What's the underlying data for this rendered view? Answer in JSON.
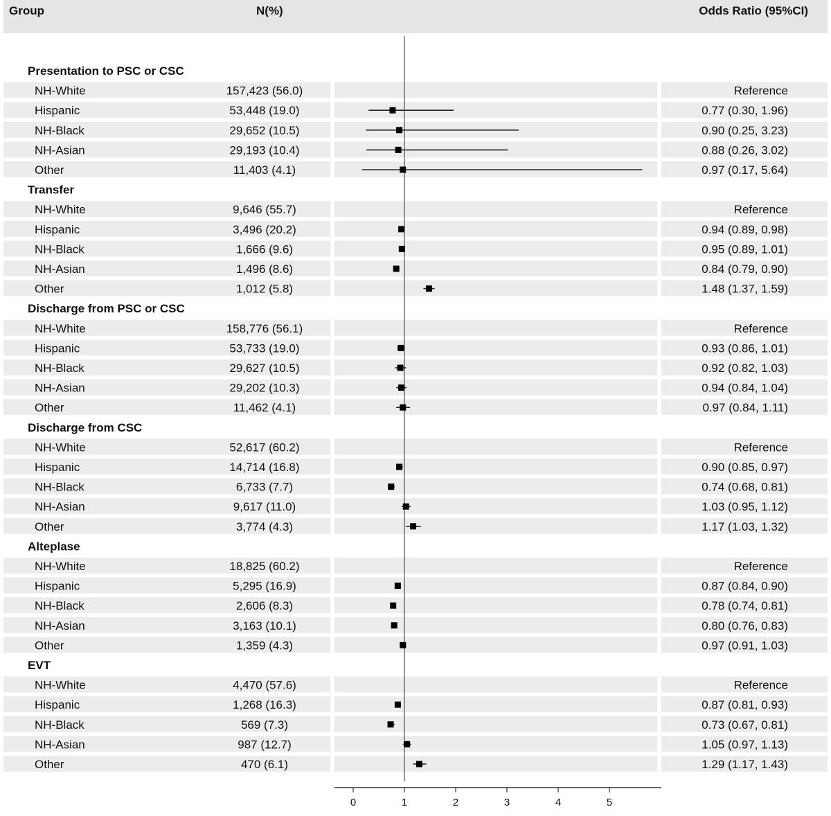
{
  "header": {
    "group": "Group",
    "n": "N(%)",
    "or": "Odds Ratio (95%CI)"
  },
  "chart_data": {
    "type": "forest",
    "reference_line": 1,
    "xlim": [
      0,
      5.7
    ],
    "xticks": [
      0,
      1,
      2,
      3,
      4,
      5
    ],
    "groups": [
      {
        "title": "Presentation to PSC or CSC",
        "rows": [
          {
            "label": "NH-White",
            "n": "157,423 (56.0)",
            "or_text": "Reference",
            "or": null,
            "lo": null,
            "hi": null
          },
          {
            "label": "Hispanic",
            "n": "53,448 (19.0)",
            "or_text": "0.77 (0.30, 1.96)",
            "or": 0.77,
            "lo": 0.3,
            "hi": 1.96
          },
          {
            "label": "NH-Black",
            "n": "29,652 (10.5)",
            "or_text": "0.90 (0.25, 3.23)",
            "or": 0.9,
            "lo": 0.25,
            "hi": 3.23
          },
          {
            "label": "NH-Asian",
            "n": "29,193 (10.4)",
            "or_text": "0.88 (0.26, 3.02)",
            "or": 0.88,
            "lo": 0.26,
            "hi": 3.02
          },
          {
            "label": "Other",
            "n": "11,403 (4.1)",
            "or_text": "0.97 (0.17, 5.64)",
            "or": 0.97,
            "lo": 0.17,
            "hi": 5.64
          }
        ]
      },
      {
        "title": "Transfer",
        "rows": [
          {
            "label": "NH-White",
            "n": "9,646 (55.7)",
            "or_text": "Reference",
            "or": null,
            "lo": null,
            "hi": null
          },
          {
            "label": "Hispanic",
            "n": "3,496 (20.2)",
            "or_text": "0.94 (0.89, 0.98)",
            "or": 0.94,
            "lo": 0.89,
            "hi": 0.98
          },
          {
            "label": "NH-Black",
            "n": "1,666 (9.6)",
            "or_text": "0.95 (0.89, 1.01)",
            "or": 0.95,
            "lo": 0.89,
            "hi": 1.01
          },
          {
            "label": "NH-Asian",
            "n": "1,496 (8.6)",
            "or_text": "0.84 (0.79, 0.90)",
            "or": 0.84,
            "lo": 0.79,
            "hi": 0.9
          },
          {
            "label": "Other",
            "n": "1,012 (5.8)",
            "or_text": "1.48 (1.37, 1.59)",
            "or": 1.48,
            "lo": 1.37,
            "hi": 1.59
          }
        ]
      },
      {
        "title": "Discharge from PSC or CSC",
        "rows": [
          {
            "label": "NH-White",
            "n": "158,776 (56.1)",
            "or_text": "Reference",
            "or": null,
            "lo": null,
            "hi": null
          },
          {
            "label": "Hispanic",
            "n": "53,733 (19.0)",
            "or_text": "0.93 (0.86, 1.01)",
            "or": 0.93,
            "lo": 0.86,
            "hi": 1.01
          },
          {
            "label": "NH-Black",
            "n": "29,627 (10.5)",
            "or_text": "0.92 (0.82, 1.03)",
            "or": 0.92,
            "lo": 0.82,
            "hi": 1.03
          },
          {
            "label": "NH-Asian",
            "n": "29,202 (10.3)",
            "or_text": "0.94 (0.84, 1.04)",
            "or": 0.94,
            "lo": 0.84,
            "hi": 1.04
          },
          {
            "label": "Other",
            "n": "11,462 (4.1)",
            "or_text": "0.97 (0.84, 1.11)",
            "or": 0.97,
            "lo": 0.84,
            "hi": 1.11
          }
        ]
      },
      {
        "title": "Discharge from CSC",
        "rows": [
          {
            "label": "NH-White",
            "n": "52,617 (60.2)",
            "or_text": "Reference",
            "or": null,
            "lo": null,
            "hi": null
          },
          {
            "label": "Hispanic",
            "n": "14,714 (16.8)",
            "or_text": "0.90 (0.85, 0.97)",
            "or": 0.9,
            "lo": 0.85,
            "hi": 0.97
          },
          {
            "label": "NH-Black",
            "n": "6,733 (7.7)",
            "or_text": "0.74 (0.68, 0.81)",
            "or": 0.74,
            "lo": 0.68,
            "hi": 0.81
          },
          {
            "label": "NH-Asian",
            "n": "9,617 (11.0)",
            "or_text": "1.03 (0.95, 1.12)",
            "or": 1.03,
            "lo": 0.95,
            "hi": 1.12
          },
          {
            "label": "Other",
            "n": "3,774 (4.3)",
            "or_text": "1.17 (1.03, 1.32)",
            "or": 1.17,
            "lo": 1.03,
            "hi": 1.32
          }
        ]
      },
      {
        "title": "Alteplase",
        "rows": [
          {
            "label": "NH-White",
            "n": "18,825 (60.2)",
            "or_text": "Reference",
            "or": null,
            "lo": null,
            "hi": null
          },
          {
            "label": "Hispanic",
            "n": "5,295 (16.9)",
            "or_text": "0.87 (0.84, 0.90)",
            "or": 0.87,
            "lo": 0.84,
            "hi": 0.9
          },
          {
            "label": "NH-Black",
            "n": "2,606 (8.3)",
            "or_text": "0.78 (0.74, 0.81)",
            "or": 0.78,
            "lo": 0.74,
            "hi": 0.81
          },
          {
            "label": "NH-Asian",
            "n": "3,163 (10.1)",
            "or_text": "0.80 (0.76, 0.83)",
            "or": 0.8,
            "lo": 0.76,
            "hi": 0.83
          },
          {
            "label": "Other",
            "n": "1,359 (4.3)",
            "or_text": "0.97 (0.91, 1.03)",
            "or": 0.97,
            "lo": 0.91,
            "hi": 1.03
          }
        ]
      },
      {
        "title": "EVT",
        "rows": [
          {
            "label": "NH-White",
            "n": "4,470 (57.6)",
            "or_text": "Reference",
            "or": null,
            "lo": null,
            "hi": null
          },
          {
            "label": "Hispanic",
            "n": "1,268 (16.3)",
            "or_text": "0.87 (0.81, 0.93)",
            "or": 0.87,
            "lo": 0.81,
            "hi": 0.93
          },
          {
            "label": "NH-Black",
            "n": "569 (7.3)",
            "or_text": "0.73 (0.67, 0.81)",
            "or": 0.73,
            "lo": 0.67,
            "hi": 0.81
          },
          {
            "label": "NH-Asian",
            "n": "987 (12.7)",
            "or_text": "1.05 (0.97, 1.13)",
            "or": 1.05,
            "lo": 0.97,
            "hi": 1.13
          },
          {
            "label": "Other",
            "n": "470 (6.1)",
            "or_text": "1.29 (1.17, 1.43)",
            "or": 1.29,
            "lo": 1.17,
            "hi": 1.43
          }
        ]
      }
    ]
  }
}
